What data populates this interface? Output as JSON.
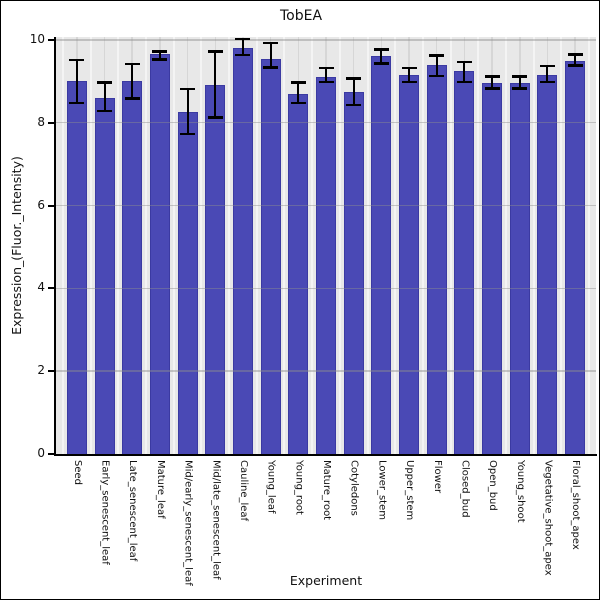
{
  "figure": {
    "window_title": "TobEA expression bar chart"
  },
  "chart_data": {
    "type": "bar",
    "title": "TobEA",
    "xlabel": "Experiment",
    "ylabel": "Expression_(Fluor._Intensity)",
    "legend": "none",
    "grid": "horizontal gray lines at ticks over bars; vertical light lines between and at categories",
    "categories": [
      "Seed",
      "Early_senescent_leaf",
      "Late_senescent_leaf",
      "Mature_leaf",
      "Mid/early_senescent_leaf",
      "Mid/late_senescent_leaf",
      "Cauline_leaf",
      "Young_leaf",
      "Young_root",
      "Mature_root",
      "Cotyledons",
      "Lower_stem",
      "Upper_stem",
      "Flower",
      "Closed_bud",
      "Open_bud",
      "Young_shoot",
      "Vegetative_shoot_apex",
      "Floral_shoot_apex"
    ],
    "values": [
      9.0,
      8.6,
      9.0,
      9.65,
      8.25,
      8.9,
      9.8,
      9.55,
      8.7,
      9.1,
      8.75,
      9.6,
      9.15,
      9.4,
      9.25,
      8.95,
      8.95,
      9.15,
      9.5
    ],
    "error_low": [
      8.45,
      8.25,
      8.55,
      9.5,
      7.7,
      8.1,
      9.6,
      9.3,
      8.45,
      8.95,
      8.4,
      9.4,
      8.95,
      9.1,
      8.95,
      8.8,
      8.8,
      8.95,
      9.35
    ],
    "error_high": [
      9.55,
      9.0,
      9.45,
      9.75,
      8.85,
      9.75,
      10.05,
      9.95,
      9.0,
      9.35,
      9.1,
      9.8,
      9.35,
      9.65,
      9.5,
      9.15,
      9.15,
      9.4,
      9.68
    ],
    "yticks": [
      0,
      2,
      4,
      6,
      8,
      10
    ],
    "ylim": [
      0,
      10.07
    ],
    "colors": {
      "bar": "#4A49B5",
      "bar_border": "#3B3AA2",
      "error_bar": "#000000",
      "plot_background": "#E8E8E8",
      "grid_horizontal": "#8F8F8F",
      "grid_vertical_minor": "#F4F4F4",
      "grid_vertical_major": "#D6D6D6",
      "axis": "#000000",
      "background": "#FFFFFF",
      "text": "#111111"
    }
  }
}
